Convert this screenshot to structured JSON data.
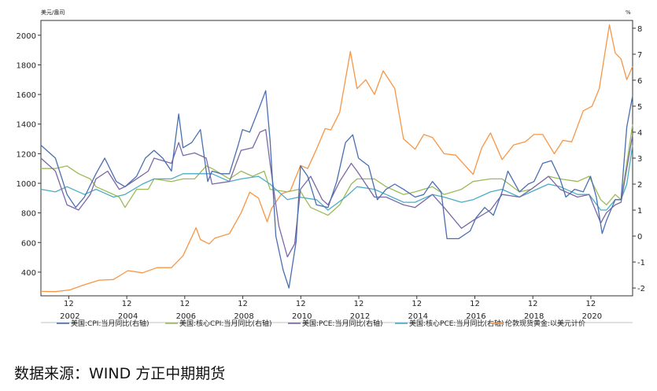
{
  "source": "数据来源：WIND 方正中期期货",
  "chart_data": {
    "type": "line",
    "left_axis": {
      "unit": "美元/盎司",
      "ticks": [
        400,
        600,
        800,
        1000,
        1200,
        1400,
        1600,
        1800,
        2000
      ],
      "range": [
        240,
        2100
      ]
    },
    "right_axis": {
      "unit": "%",
      "ticks": [
        -2,
        -1,
        0,
        1,
        2,
        3,
        4,
        5,
        6,
        7,
        8
      ],
      "range": [
        -2.3,
        8.3
      ]
    },
    "x_axis": {
      "range": [
        2001.0,
        2021.4
      ],
      "month_ticks": [
        {
          "x": 2001.96,
          "label": "12"
        },
        {
          "x": 2003.96,
          "label": "12"
        },
        {
          "x": 2005.96,
          "label": "12"
        },
        {
          "x": 2007.96,
          "label": "12"
        },
        {
          "x": 2009.96,
          "label": "12"
        },
        {
          "x": 2011.96,
          "label": "12"
        },
        {
          "x": 2013.96,
          "label": "12"
        },
        {
          "x": 2015.96,
          "label": "12"
        },
        {
          "x": 2017.96,
          "label": "12"
        },
        {
          "x": 2019.96,
          "label": "12"
        }
      ],
      "year_ticks": [
        {
          "x": 2002.0,
          "label": "2002"
        },
        {
          "x": 2004.0,
          "label": "2004"
        },
        {
          "x": 2006.0,
          "label": "2006"
        },
        {
          "x": 2008.0,
          "label": "2008"
        },
        {
          "x": 2010.0,
          "label": "2010"
        },
        {
          "x": 2012.0,
          "label": "2012"
        },
        {
          "x": 2014.0,
          "label": "2014"
        },
        {
          "x": 2016.0,
          "label": "2016"
        },
        {
          "x": 2018.0,
          "label": "2018"
        },
        {
          "x": 2020.0,
          "label": "2020"
        }
      ]
    },
    "series": [
      {
        "name": "美国:CPI:当月同比(右轴)",
        "axis": "right",
        "color": "#4a6fb0",
        "x": [
          2001.0,
          2001.5,
          2001.9,
          2002.2,
          2002.5,
          2002.9,
          2003.2,
          2003.6,
          2003.9,
          2004.3,
          2004.6,
          2004.9,
          2005.2,
          2005.5,
          2005.75,
          2005.9,
          2006.2,
          2006.5,
          2006.75,
          2006.9,
          2007.2,
          2007.5,
          2007.8,
          2007.95,
          2008.2,
          2008.55,
          2008.75,
          2008.9,
          2009.1,
          2009.35,
          2009.55,
          2009.8,
          2009.95,
          2010.2,
          2010.5,
          2010.9,
          2011.2,
          2011.5,
          2011.75,
          2011.95,
          2012.3,
          2012.6,
          2012.9,
          2013.2,
          2013.5,
          2013.9,
          2014.2,
          2014.5,
          2014.8,
          2015.0,
          2015.4,
          2015.8,
          2016.0,
          2016.3,
          2016.6,
          2016.9,
          2017.1,
          2017.5,
          2017.8,
          2018.0,
          2018.3,
          2018.6,
          2018.9,
          2019.1,
          2019.4,
          2019.7,
          2019.95,
          2020.15,
          2020.35,
          2020.5,
          2020.8,
          2021.0,
          2021.2,
          2021.4
        ],
        "y": [
          3.5,
          3.0,
          1.6,
          1.1,
          1.5,
          2.4,
          3.0,
          2.1,
          1.9,
          2.3,
          3.0,
          3.3,
          3.0,
          2.5,
          4.7,
          3.4,
          3.6,
          4.1,
          2.1,
          2.5,
          2.4,
          2.4,
          3.5,
          4.1,
          4.0,
          5.0,
          5.6,
          3.7,
          0.0,
          -1.3,
          -2.0,
          -0.2,
          2.7,
          2.3,
          1.2,
          1.1,
          2.1,
          3.6,
          3.9,
          3.0,
          2.7,
          1.4,
          1.8,
          2.0,
          1.8,
          1.5,
          1.6,
          2.1,
          1.7,
          -0.1,
          -0.1,
          0.2,
          0.7,
          1.1,
          0.8,
          1.7,
          2.5,
          1.7,
          2.0,
          2.1,
          2.8,
          2.9,
          2.2,
          1.5,
          1.8,
          1.7,
          2.3,
          1.5,
          0.1,
          0.6,
          1.4,
          1.4,
          4.2,
          5.4
        ]
      },
      {
        "name": "美国:核心CPI:当月同比(右轴)",
        "axis": "right",
        "color": "#9bbb59",
        "x": [
          2001.0,
          2001.5,
          2001.9,
          2002.3,
          2002.7,
          2002.9,
          2003.3,
          2003.7,
          2003.9,
          2004.3,
          2004.7,
          2004.9,
          2005.5,
          2005.9,
          2006.3,
          2006.7,
          2006.9,
          2007.5,
          2007.9,
          2008.3,
          2008.7,
          2008.9,
          2009.5,
          2009.9,
          2010.3,
          2010.7,
          2010.9,
          2011.3,
          2011.7,
          2011.9,
          2012.5,
          2012.9,
          2013.5,
          2013.9,
          2014.5,
          2014.9,
          2015.5,
          2015.9,
          2016.5,
          2016.9,
          2017.5,
          2017.9,
          2018.5,
          2018.9,
          2019.5,
          2019.9,
          2020.3,
          2020.5,
          2020.8,
          2021.0,
          2021.2,
          2021.4
        ],
        "y": [
          2.6,
          2.6,
          2.7,
          2.4,
          2.2,
          1.9,
          1.7,
          1.5,
          1.1,
          1.8,
          1.8,
          2.2,
          2.1,
          2.2,
          2.2,
          2.7,
          2.6,
          2.2,
          2.5,
          2.3,
          2.5,
          1.8,
          1.7,
          1.8,
          1.1,
          0.9,
          0.8,
          1.2,
          2.0,
          2.2,
          2.2,
          1.9,
          1.6,
          1.7,
          1.9,
          1.6,
          1.8,
          2.1,
          2.2,
          2.2,
          1.7,
          1.8,
          2.3,
          2.2,
          2.1,
          2.3,
          1.4,
          1.2,
          1.6,
          1.4,
          2.8,
          4.3
        ]
      },
      {
        "name": "美国:PCE:当月同比(右轴)",
        "axis": "right",
        "color": "#7b68a6",
        "x": [
          2001.0,
          2001.5,
          2001.9,
          2002.3,
          2002.7,
          2002.9,
          2003.3,
          2003.7,
          2003.9,
          2004.3,
          2004.7,
          2004.9,
          2005.5,
          2005.75,
          2005.9,
          2006.3,
          2006.7,
          2006.9,
          2007.5,
          2007.9,
          2008.3,
          2008.55,
          2008.75,
          2008.9,
          2009.2,
          2009.5,
          2009.75,
          2009.95,
          2010.3,
          2010.7,
          2010.9,
          2011.3,
          2011.7,
          2011.9,
          2012.5,
          2012.9,
          2013.5,
          2013.9,
          2014.5,
          2014.9,
          2015.5,
          2015.9,
          2016.5,
          2016.9,
          2017.5,
          2017.9,
          2018.5,
          2018.9,
          2019.5,
          2019.9,
          2020.3,
          2020.5,
          2020.8,
          2021.0,
          2021.2,
          2021.4
        ],
        "y": [
          3.0,
          2.5,
          1.2,
          1.0,
          1.6,
          2.2,
          2.5,
          1.8,
          1.9,
          2.2,
          2.5,
          3.0,
          2.8,
          3.6,
          3.1,
          3.2,
          3.0,
          2.0,
          2.1,
          3.3,
          3.4,
          4.0,
          4.1,
          2.8,
          0.4,
          -0.8,
          -0.3,
          1.8,
          2.3,
          1.4,
          1.2,
          2.1,
          2.8,
          2.5,
          1.5,
          1.5,
          1.2,
          1.1,
          1.6,
          1.1,
          0.3,
          0.6,
          1.0,
          1.6,
          1.5,
          1.8,
          2.3,
          1.8,
          1.5,
          1.6,
          0.5,
          0.9,
          1.2,
          1.3,
          2.6,
          3.9
        ]
      },
      {
        "name": "美国:核心PCE:当月同比(右轴)",
        "axis": "right",
        "color": "#4bacc6",
        "x": [
          2001.0,
          2001.5,
          2001.9,
          2002.5,
          2002.9,
          2003.5,
          2003.9,
          2004.5,
          2004.9,
          2005.5,
          2005.9,
          2006.5,
          2006.9,
          2007.5,
          2007.9,
          2008.5,
          2008.9,
          2009.5,
          2009.9,
          2010.5,
          2010.9,
          2011.5,
          2011.9,
          2012.5,
          2012.9,
          2013.5,
          2013.9,
          2014.5,
          2014.9,
          2015.5,
          2015.9,
          2016.5,
          2016.9,
          2017.5,
          2017.9,
          2018.5,
          2018.9,
          2019.5,
          2019.9,
          2020.3,
          2020.5,
          2020.8,
          2021.0,
          2021.2,
          2021.4
        ],
        "y": [
          1.8,
          1.7,
          1.9,
          1.6,
          1.8,
          1.5,
          1.6,
          2.0,
          2.2,
          2.2,
          2.4,
          2.4,
          2.4,
          2.1,
          2.2,
          2.3,
          2.0,
          1.4,
          1.5,
          1.4,
          1.0,
          1.5,
          1.9,
          1.8,
          1.6,
          1.3,
          1.3,
          1.6,
          1.5,
          1.3,
          1.4,
          1.7,
          1.8,
          1.5,
          1.7,
          2.0,
          1.9,
          1.6,
          1.6,
          1.0,
          1.0,
          1.4,
          1.4,
          2.0,
          3.5
        ]
      },
      {
        "name": "伦敦现货黄金:以美元计价",
        "axis": "left",
        "color": "#f79646",
        "x": [
          2001.0,
          2001.5,
          2002.0,
          2002.5,
          2003.0,
          2003.5,
          2004.0,
          2004.5,
          2005.0,
          2005.5,
          2005.9,
          2006.35,
          2006.5,
          2006.8,
          2007.0,
          2007.5,
          2007.9,
          2008.2,
          2008.5,
          2008.8,
          2008.95,
          2009.3,
          2009.6,
          2009.95,
          2010.2,
          2010.5,
          2010.8,
          2011.0,
          2011.3,
          2011.67,
          2011.9,
          2012.2,
          2012.5,
          2012.8,
          2013.2,
          2013.5,
          2013.9,
          2014.2,
          2014.5,
          2014.9,
          2015.3,
          2015.9,
          2016.2,
          2016.5,
          2016.9,
          2017.3,
          2017.7,
          2018.0,
          2018.3,
          2018.7,
          2019.0,
          2019.3,
          2019.7,
          2020.0,
          2020.25,
          2020.6,
          2020.8,
          2021.0,
          2021.2,
          2021.4
        ],
        "y": [
          270,
          268,
          280,
          315,
          345,
          350,
          410,
          395,
          430,
          430,
          510,
          700,
          620,
          590,
          630,
          660,
          800,
          940,
          900,
          740,
          830,
          930,
          950,
          1120,
          1100,
          1230,
          1370,
          1360,
          1480,
          1890,
          1640,
          1700,
          1600,
          1760,
          1640,
          1300,
          1230,
          1330,
          1310,
          1200,
          1190,
          1060,
          1240,
          1340,
          1160,
          1260,
          1280,
          1330,
          1330,
          1200,
          1290,
          1280,
          1490,
          1520,
          1640,
          2070,
          1880,
          1840,
          1700,
          1790
        ]
      }
    ]
  }
}
